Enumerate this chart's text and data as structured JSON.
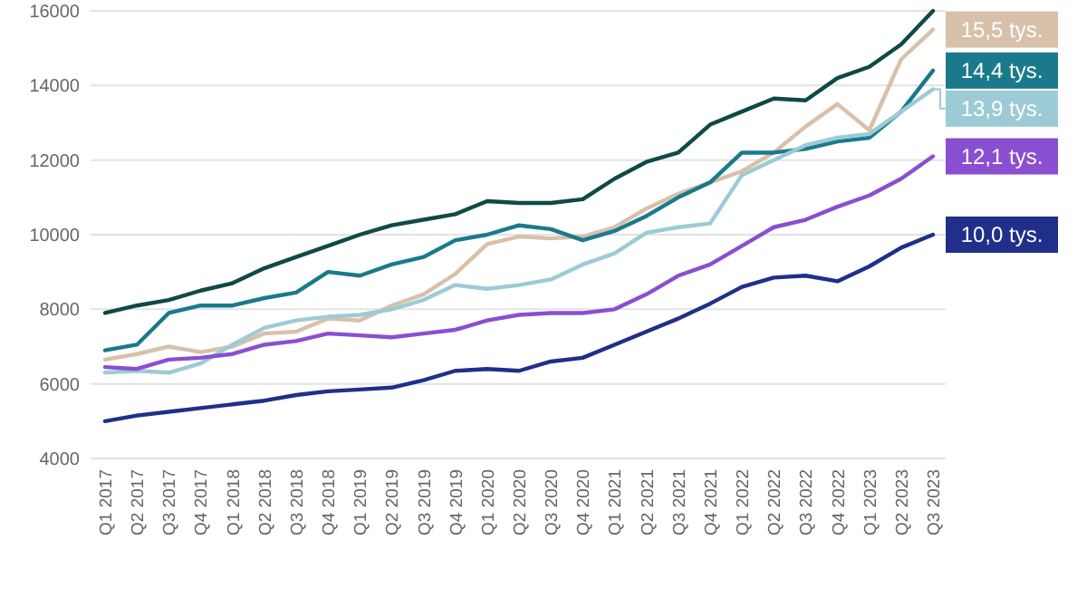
{
  "chart_data": {
    "type": "line",
    "categories": [
      "Q1 2017",
      "Q2 2017",
      "Q3 2017",
      "Q4 2017",
      "Q1 2018",
      "Q2 2018",
      "Q3 2018",
      "Q4 2018",
      "Q1 2019",
      "Q2 2019",
      "Q3 2019",
      "Q4 2019",
      "Q1 2020",
      "Q2 2020",
      "Q3 2020",
      "Q4 2020",
      "Q1 2021",
      "Q2 2021",
      "Q3 2021",
      "Q4 2021",
      "Q1 2022",
      "Q2 2022",
      "Q3 2022",
      "Q4 2022",
      "Q1 2023",
      "Q2 2023",
      "Q3 2023"
    ],
    "ylim": [
      4000,
      16000
    ],
    "yticks": [
      4000,
      6000,
      8000,
      10000,
      12000,
      14000,
      16000
    ],
    "grid": "y",
    "marker": "none",
    "line_style": "solid",
    "series": [
      {
        "color": "#0f4a45",
        "values": [
          7900,
          8100,
          8250,
          8500,
          8700,
          9100,
          9400,
          9700,
          10000,
          10250,
          10400,
          10550,
          10900,
          10850,
          10850,
          10950,
          11500,
          11950,
          12200,
          12950,
          13300,
          13650,
          13600,
          14200,
          14500,
          15100,
          16000
        ]
      },
      {
        "color": "#d9c0aa",
        "values": [
          6650,
          6800,
          7000,
          6850,
          7000,
          7350,
          7400,
          7750,
          7700,
          8100,
          8400,
          8950,
          9750,
          9950,
          9900,
          9950,
          10200,
          10700,
          11100,
          11400,
          11700,
          12200,
          12900,
          13500,
          12800,
          14700,
          15500
        ]
      },
      {
        "color": "#1a7a8c",
        "values": [
          6900,
          7050,
          7900,
          8100,
          8100,
          8300,
          8450,
          9000,
          8900,
          9200,
          9400,
          9850,
          10000,
          10250,
          10150,
          9850,
          10100,
          10500,
          11000,
          11400,
          12200,
          12200,
          12300,
          12500,
          12600,
          13300,
          14400
        ]
      },
      {
        "color": "#9ccbd6",
        "values": [
          6300,
          6350,
          6300,
          6550,
          7050,
          7500,
          7700,
          7800,
          7850,
          8000,
          8250,
          8650,
          8550,
          8650,
          8800,
          9200,
          9500,
          10050,
          10200,
          10300,
          11600,
          12000,
          12400,
          12600,
          12700,
          13300,
          13900
        ]
      },
      {
        "color": "#8a4fd0",
        "values": [
          6450,
          6400,
          6650,
          6700,
          6800,
          7050,
          7150,
          7350,
          7300,
          7250,
          7350,
          7450,
          7700,
          7850,
          7900,
          7900,
          8000,
          8400,
          8900,
          9200,
          9700,
          10200,
          10400,
          10750,
          11050,
          11500,
          12100
        ]
      },
      {
        "color": "#1f2f8a",
        "values": [
          5000,
          5150,
          5250,
          5350,
          5450,
          5550,
          5700,
          5800,
          5850,
          5900,
          6100,
          6350,
          6400,
          6350,
          6600,
          6700,
          7050,
          7400,
          7750,
          8150,
          8600,
          8850,
          8900,
          8750,
          9150,
          9650,
          10000
        ]
      }
    ],
    "annotations": [
      {
        "text": "15,5 tys.",
        "x": "Q3 2023",
        "y": 15500
      },
      {
        "text": "14,4 tys.",
        "x": "Q3 2023",
        "y": 14400
      },
      {
        "text": "13,9 tys.",
        "x": "Q3 2023",
        "y": 13900
      },
      {
        "text": "12,1 tys.",
        "x": "Q3 2023",
        "y": 12100
      },
      {
        "text": "10,0 tys.",
        "x": "Q3 2023",
        "y": 10000
      }
    ]
  }
}
